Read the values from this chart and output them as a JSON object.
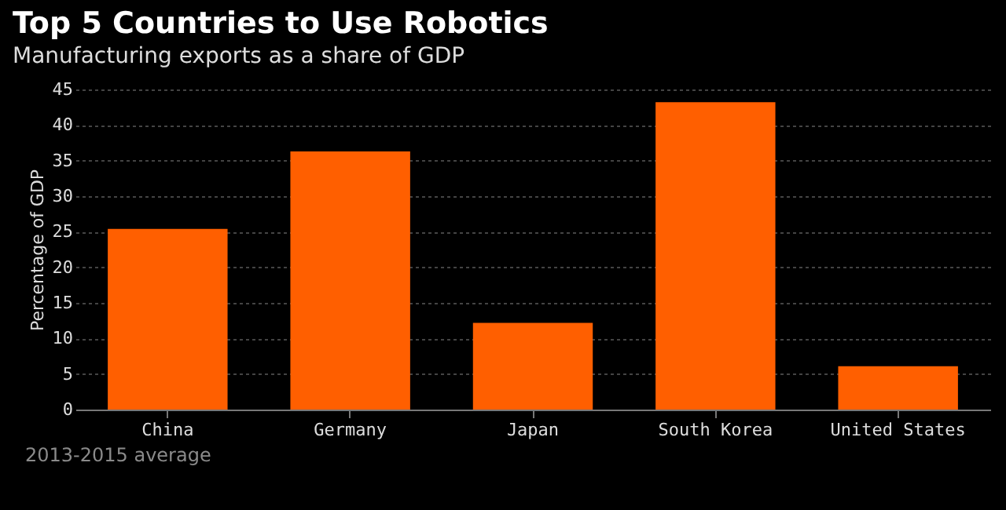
{
  "chart_data": {
    "type": "bar",
    "title": "Top 5 Countries to Use Robotics",
    "subtitle": "Manufacturing exports as a share of GDP",
    "ylabel": "Percentage of GDP",
    "categories": [
      "China",
      "Germany",
      "Japan",
      "South Korea",
      "United States"
    ],
    "values": [
      25.4,
      36.3,
      12.2,
      43.2,
      6.1
    ],
    "color": "#ff5f00",
    "ylim": [
      0,
      45
    ],
    "yticks": [
      0,
      5,
      10,
      15,
      20,
      25,
      30,
      35,
      40,
      45
    ],
    "grid": "y",
    "annotations": [
      "2013-2015 average"
    ]
  }
}
